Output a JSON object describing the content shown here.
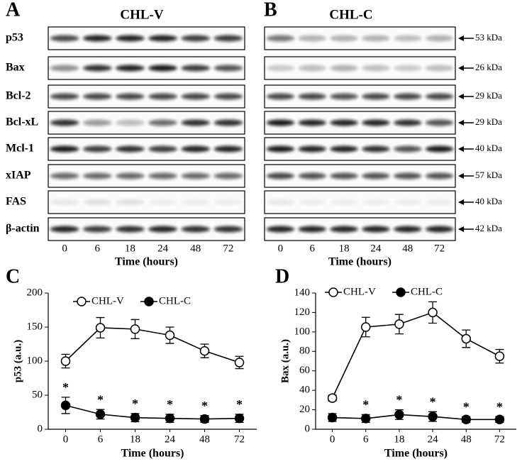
{
  "blots": {
    "panels": [
      {
        "letter": "A",
        "title": "CHL-V",
        "time_labels": [
          "0",
          "6",
          "18",
          "24",
          "48",
          "72"
        ],
        "x_label": "Time (hours)"
      },
      {
        "letter": "B",
        "title": "CHL-C",
        "time_labels": [
          "0",
          "6",
          "18",
          "24",
          "48",
          "72"
        ],
        "x_label": "Time (hours)"
      }
    ],
    "proteins": [
      "p53",
      "Bax",
      "Bcl-2",
      "Bcl-xL",
      "Mcl-1",
      "xIAP",
      "FAS",
      "β-actin"
    ],
    "sizes": [
      "53 kDa",
      "26 kDa",
      "29 kDa",
      "29 kDa",
      "40 kDa",
      "57 kDa",
      "40 kDa",
      "42 kDa"
    ]
  },
  "chart_data": [
    {
      "type": "line",
      "panel_label": "C",
      "x_label": "Time (hours)",
      "y_label": "p53 (a.u.)",
      "categories": [
        "0",
        "6",
        "18",
        "24",
        "48",
        "72"
      ],
      "ylim": [
        0,
        200
      ],
      "yticks": [
        0,
        50,
        100,
        150,
        200
      ],
      "series": [
        {
          "name": "CHL-V",
          "color": "#000000",
          "filled": false,
          "values": [
            100,
            149,
            147,
            138,
            115,
            98
          ],
          "errors": [
            10,
            15,
            14,
            12,
            10,
            9
          ]
        },
        {
          "name": "CHL-C",
          "color": "#000000",
          "filled": true,
          "values": [
            35,
            22,
            17,
            16,
            15,
            16
          ],
          "errors": [
            12,
            7,
            6,
            6,
            5,
            6
          ]
        }
      ],
      "significance": [
        "*",
        "*",
        "*",
        "*",
        "*",
        "*"
      ]
    },
    {
      "type": "line",
      "panel_label": "D",
      "x_label": "Time (hours)",
      "y_label": "Bax (a.u.)",
      "categories": [
        "0",
        "6",
        "18",
        "24",
        "48",
        "72"
      ],
      "ylim": [
        0,
        140
      ],
      "yticks": [
        0,
        20,
        40,
        60,
        80,
        100,
        120,
        140
      ],
      "series": [
        {
          "name": "CHL-V",
          "color": "#000000",
          "filled": false,
          "values": [
            32,
            105,
            108,
            120,
            93,
            75
          ],
          "errors": [
            3,
            10,
            10,
            11,
            9,
            7
          ]
        },
        {
          "name": "CHL-C",
          "color": "#000000",
          "filled": true,
          "values": [
            12,
            11,
            15,
            13,
            10,
            10
          ],
          "errors": [
            4,
            4,
            5,
            5,
            3,
            3
          ]
        }
      ],
      "significance": [
        null,
        "*",
        "*",
        "*",
        "*",
        "*"
      ]
    }
  ]
}
